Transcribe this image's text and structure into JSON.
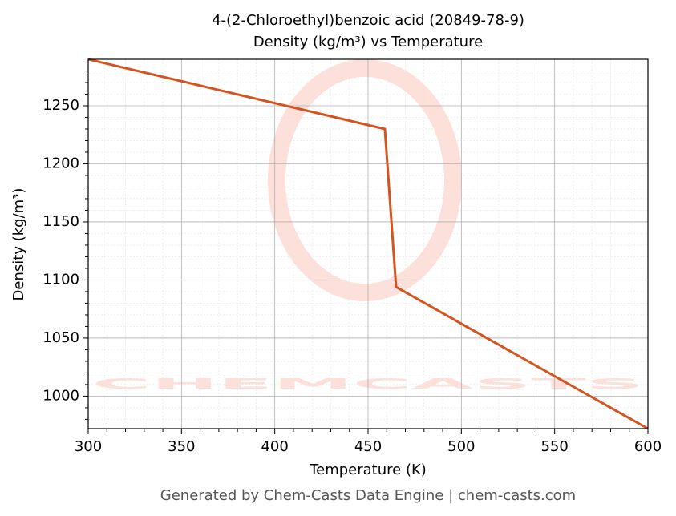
{
  "chart_data": {
    "type": "line",
    "title": "4-(2-Chloroethyl)benzoic acid (20849-78-9)",
    "subtitle": "Density (kg/m³) vs Temperature",
    "x_label": "Temperature (K)",
    "y_label": "Density (kg/m³)",
    "footer": "Generated by Chem-Casts Data Engine | chem-casts.com",
    "watermark": "CHEMCASTS",
    "x": [
      300,
      459,
      465,
      600
    ],
    "series": [
      {
        "name": "Density",
        "color": "#d4541f",
        "values": [
          1290,
          1230,
          1094,
          972
        ]
      }
    ],
    "xlim": [
      300,
      600
    ],
    "ylim": [
      972,
      1290
    ],
    "xticks": [
      300,
      350,
      400,
      450,
      500,
      550,
      600
    ],
    "yticks": [
      1000,
      1050,
      1100,
      1150,
      1200,
      1250
    ],
    "xminorticks": [
      310,
      320,
      330,
      340,
      360,
      370,
      380,
      390,
      410,
      420,
      430,
      440,
      460,
      470,
      480,
      490,
      510,
      520,
      530,
      540,
      560,
      570,
      580,
      590
    ],
    "yminorticks": [
      980,
      990,
      1010,
      1020,
      1030,
      1040,
      1060,
      1070,
      1080,
      1090,
      1110,
      1120,
      1130,
      1140,
      1160,
      1170,
      1180,
      1190,
      1210,
      1220,
      1230,
      1240,
      1260,
      1270,
      1280
    ],
    "grid": true
  }
}
